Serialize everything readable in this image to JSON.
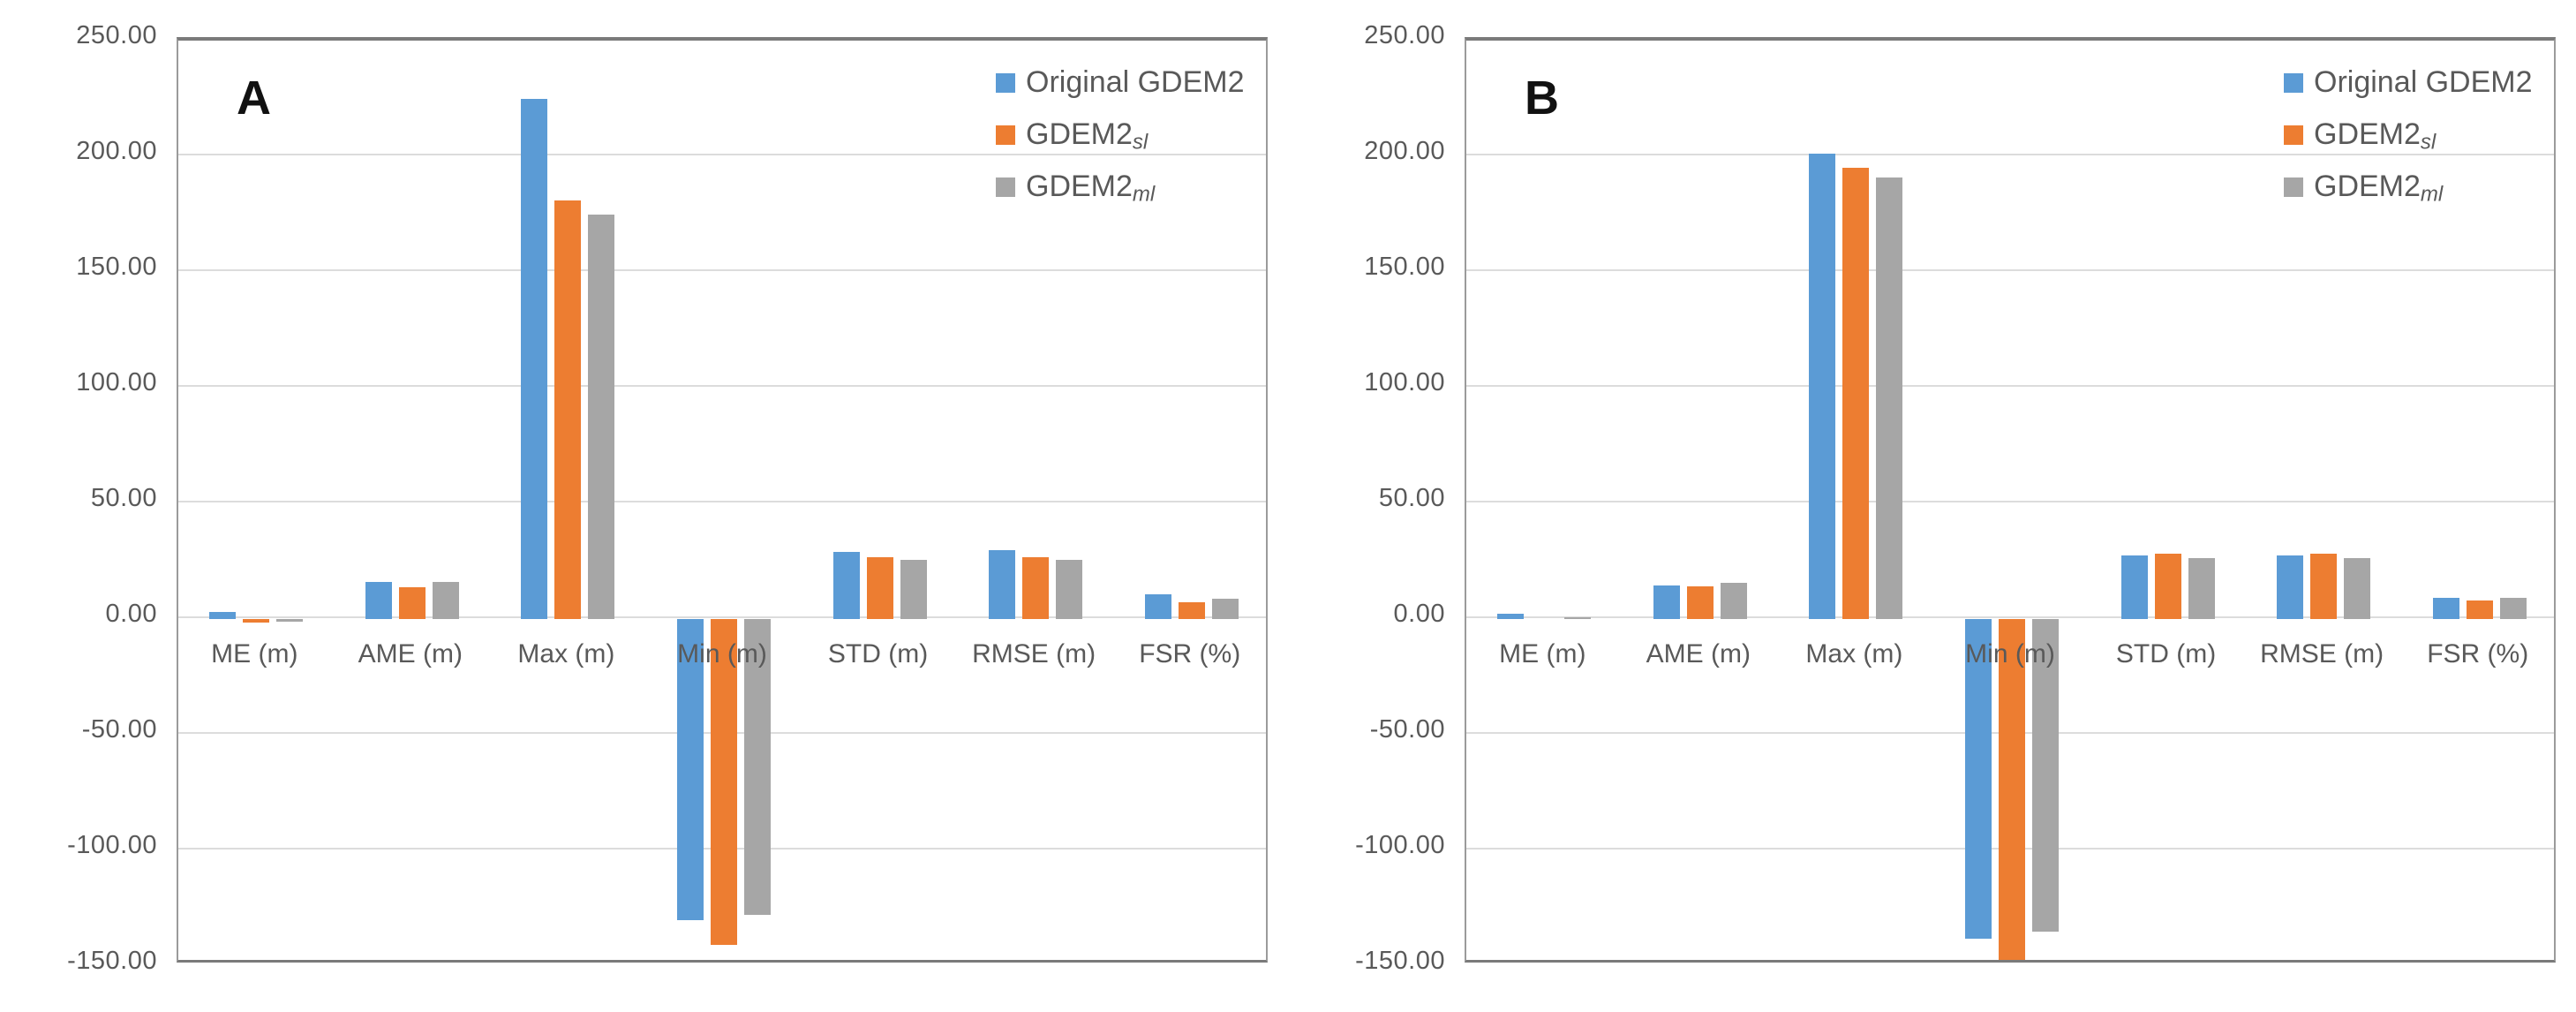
{
  "figure": {
    "background_color": "#ffffff",
    "text_color": "#595959",
    "gridline_color": "#dcdcdc",
    "axis_border_color": "#7a7a7a"
  },
  "y_ticks": [
    "250.00",
    "200.00",
    "150.00",
    "100.00",
    "50.00",
    "0.00",
    "-50.00",
    "-100.00",
    "-150.00"
  ],
  "categories": [
    "ME (m)",
    "AME (m)",
    "Max (m)",
    "Min (m)",
    "STD (m)",
    "RMSE (m)",
    "FSR (%)"
  ],
  "legend": [
    {
      "text": "Original GDEM2",
      "sub": "",
      "color": "#5B9BD5"
    },
    {
      "text": "GDEM2",
      "sub": "sl",
      "color": "#ED7D31"
    },
    {
      "text": "GDEM2",
      "sub": "ml",
      "color": "#A6A6A6"
    }
  ],
  "chart_data": [
    {
      "type": "bar",
      "panel_label": "A",
      "categories": [
        "ME (m)",
        "AME (m)",
        "Max (m)",
        "Min (m)",
        "STD (m)",
        "RMSE (m)",
        "FSR (%)"
      ],
      "series": [
        {
          "name": "Original GDEM2",
          "color": "#5B9BD5",
          "values": [
            2.9,
            15.9,
            225.0,
            -130.0,
            29.0,
            29.7,
            10.6
          ]
        },
        {
          "name": "GDEM2sl",
          "color": "#ED7D31",
          "values": [
            -1.6,
            13.9,
            181.0,
            -141.0,
            26.7,
            26.8,
            7.3
          ]
        },
        {
          "name": "GDEM2ml",
          "color": "#A6A6A6",
          "values": [
            -1.2,
            16.0,
            175.0,
            -128.0,
            25.4,
            25.7,
            8.7
          ]
        }
      ],
      "ylim": [
        -150,
        250
      ],
      "ytick_step": 50,
      "grid": true,
      "legend_position": "top-right"
    },
    {
      "type": "bar",
      "panel_label": "B",
      "categories": [
        "ME (m)",
        "AME (m)",
        "Max (m)",
        "Min (m)",
        "STD (m)",
        "RMSE (m)",
        "FSR (%)"
      ],
      "series": [
        {
          "name": "Original GDEM2",
          "color": "#5B9BD5",
          "values": [
            2.3,
            14.6,
            201.0,
            -138.0,
            27.5,
            27.4,
            9.0
          ]
        },
        {
          "name": "GDEM2sl",
          "color": "#ED7D31",
          "values": [
            0.0,
            14.2,
            195.0,
            -150.4,
            28.3,
            28.2,
            7.9
          ]
        },
        {
          "name": "GDEM2ml",
          "color": "#A6A6A6",
          "values": [
            0.8,
            15.7,
            191.0,
            -135.0,
            26.4,
            26.3,
            9.0
          ]
        }
      ],
      "ylim": [
        -150,
        250
      ],
      "ytick_step": 50,
      "grid": true,
      "legend_position": "top-right"
    }
  ]
}
